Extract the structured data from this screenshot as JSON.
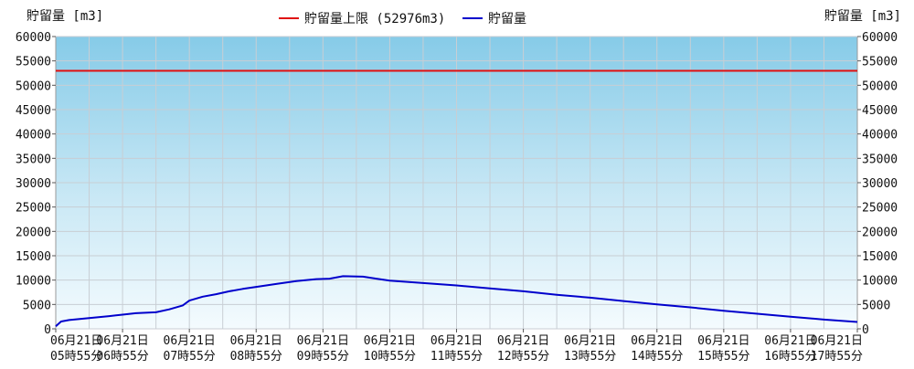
{
  "chart_data": {
    "type": "line",
    "ylabel_left": "貯留量 [m3]",
    "ylabel_right": "貯留量 [m3]",
    "ylim": [
      0,
      60000
    ],
    "y_ticks": [
      "0",
      "5000",
      "10000",
      "15000",
      "20000",
      "25000",
      "30000",
      "35000",
      "40000",
      "45000",
      "50000",
      "55000",
      "60000"
    ],
    "x_tick_labels": [
      [
        "06月21日",
        "05時55分"
      ],
      [
        "06月21日",
        "06時55分"
      ],
      [
        "06月21日",
        "07時55分"
      ],
      [
        "06月21日",
        "08時55分"
      ],
      [
        "06月21日",
        "09時55分"
      ],
      [
        "06月21日",
        "10時55分"
      ],
      [
        "06月21日",
        "11時55分"
      ],
      [
        "06月21日",
        "12時55分"
      ],
      [
        "06月21日",
        "13時55分"
      ],
      [
        "06月21日",
        "14時55分"
      ],
      [
        "06月21日",
        "15時55分"
      ],
      [
        "06月21日",
        "16時55分"
      ],
      [
        "06月21日",
        "17時55分"
      ]
    ],
    "grid": true,
    "legend_position": "top-center",
    "limit": {
      "name": "貯留量上限 (52976m3)",
      "value": 52976,
      "color": "#e01010"
    },
    "series": [
      {
        "name": "貯留量",
        "color": "#0000cc",
        "x_hours": [
          0,
          0.08,
          0.2,
          0.5,
          0.8,
          1.0,
          1.2,
          1.5,
          1.7,
          1.9,
          2.0,
          2.2,
          2.4,
          2.6,
          2.8,
          3.0,
          3.3,
          3.6,
          3.9,
          4.1,
          4.3,
          4.6,
          4.8,
          5.0,
          5.5,
          6.0,
          6.5,
          7.0,
          7.5,
          8.0,
          8.5,
          9.0,
          9.5,
          10.0,
          10.5,
          11.0,
          11.5,
          12.0
        ],
        "values": [
          500,
          1500,
          1800,
          2200,
          2600,
          2900,
          3200,
          3400,
          4000,
          4800,
          5800,
          6600,
          7100,
          7700,
          8200,
          8600,
          9200,
          9800,
          10200,
          10300,
          10800,
          10700,
          10300,
          9900,
          9400,
          8900,
          8300,
          7700,
          7000,
          6400,
          5700,
          5000,
          4400,
          3700,
          3100,
          2500,
          1900,
          1400
        ]
      }
    ]
  }
}
